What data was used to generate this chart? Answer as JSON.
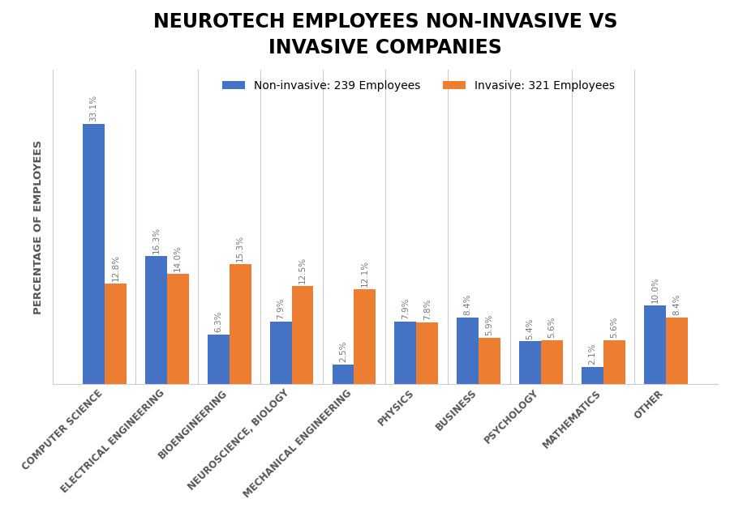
{
  "title": "NEUROTECH EMPLOYEES NON-INVASIVE VS\nINVASIVE COMPANIES",
  "categories": [
    "COMPUTER SCIENCE",
    "ELECTRICAL ENGINEERING",
    "BIOENGINEERING",
    "NEUROSCIENCE, BIOLOGY",
    "MECHANICAL ENGINEERING",
    "PHYSICS",
    "BUSINESS",
    "PSYCHOLOGY",
    "MATHEMATICS",
    "OTHER"
  ],
  "non_invasive": [
    33.1,
    16.3,
    6.3,
    7.9,
    2.5,
    7.9,
    8.4,
    5.4,
    2.1,
    10.0
  ],
  "invasive": [
    12.8,
    14.0,
    15.3,
    12.5,
    12.1,
    7.8,
    5.9,
    5.6,
    5.6,
    8.4
  ],
  "non_invasive_label": "Non-invasive: 239 Employees",
  "invasive_label": "Invasive: 321 Employees",
  "ylabel": "PERCENTAGE OF EMPLOYEES",
  "non_invasive_color": "#4472C4",
  "invasive_color": "#ED7D31",
  "background_color": "#FFFFFF",
  "title_fontsize": 17,
  "label_fontsize": 8.5,
  "bar_label_fontsize": 7.5,
  "legend_fontsize": 10,
  "ylabel_fontsize": 9.5
}
